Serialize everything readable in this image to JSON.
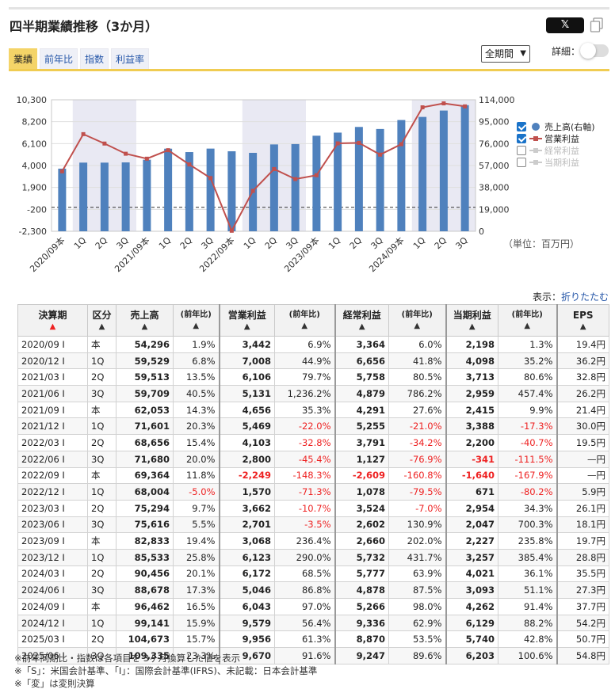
{
  "header": {
    "title": "四半期業績推移（3か月）",
    "share_x_label": "𝕏",
    "tabs": [
      "業績",
      "前年比",
      "指数",
      "利益率"
    ],
    "active_tab": 0,
    "period_select": "全期間",
    "detail_label": "詳細："
  },
  "chart_data": {
    "type": "bar+line",
    "categories": [
      "2020/09本",
      "1Q",
      "2Q",
      "3Q",
      "2021/09本",
      "1Q",
      "2Q",
      "3Q",
      "2022/09本",
      "1Q",
      "2Q",
      "3Q",
      "2023/09本",
      "1Q",
      "2Q",
      "3Q",
      "2024/09本",
      "1Q",
      "2Q",
      "3Q"
    ],
    "x_tick_labels": [
      "2020/09本",
      "1Q",
      "2Q",
      "3Q",
      "2021/09本",
      "1Q",
      "2Q",
      "3Q",
      "2022/09本",
      "1Q",
      "2Q",
      "3Q",
      "2023/09本",
      "1Q",
      "2Q",
      "3Q",
      "2024/09本",
      "1Q",
      "2Q",
      "3Q"
    ],
    "left_axis": {
      "ticks": [
        "10,300",
        "8,200",
        "6,100",
        "4,000",
        "1,900",
        "-200",
        "-2,300"
      ],
      "ylim": [
        -2300,
        10300
      ]
    },
    "right_axis": {
      "ticks": [
        "114,000",
        "95,000",
        "76,000",
        "57,000",
        "38,000",
        "19,000",
        "0"
      ],
      "ylim": [
        0,
        114000
      ]
    },
    "series": [
      {
        "name": "売上高(右軸)",
        "type": "bar",
        "axis": "right",
        "color": "#4f81bd",
        "values": [
          54296,
          59529,
          59513,
          59709,
          62053,
          71601,
          68656,
          71680,
          69364,
          68004,
          75294,
          75616,
          82833,
          85533,
          90456,
          88678,
          96462,
          99141,
          104673,
          109335
        ]
      },
      {
        "name": "営業利益",
        "type": "line",
        "axis": "left",
        "color": "#c0504d",
        "values": [
          3442,
          7008,
          6106,
          5131,
          4656,
          5469,
          4103,
          2800,
          -2249,
          1570,
          3662,
          2701,
          3068,
          6123,
          6172,
          5046,
          6043,
          9579,
          9956,
          9670
        ]
      }
    ],
    "shaded_groups": [
      [
        1,
        3
      ],
      [
        9,
        11
      ],
      [
        17,
        19
      ]
    ],
    "zero_line": 0
  },
  "legend": [
    {
      "label": "売上高(右軸)",
      "checked": true,
      "kind": "dot",
      "color": "#4f81bd"
    },
    {
      "label": "営業利益",
      "checked": true,
      "kind": "line",
      "color": "#c0504d"
    },
    {
      "label": "経常利益",
      "checked": false,
      "kind": "line",
      "color": "#c8c8c8"
    },
    {
      "label": "当期利益",
      "checked": false,
      "kind": "line",
      "color": "#c8c8c8"
    }
  ],
  "unit_label": "（単位：百万円）",
  "display": {
    "prefix": "表示：",
    "link": "折りたたむ"
  },
  "table": {
    "headers": [
      "決算期",
      "区分",
      "売上高",
      "(前年比)",
      "営業利益",
      "(前年比)",
      "経常利益",
      "(前年比)",
      "当期利益",
      "(前年比)",
      "EPS"
    ],
    "sort_arrows": [
      "▲",
      "▲",
      "▲",
      "▲",
      "▲",
      "▲",
      "▲",
      "▲",
      "▲",
      "▲",
      "▲"
    ],
    "rows": [
      [
        "2020/09 I",
        "本",
        "54,296",
        "1.9%",
        "3,442",
        "6.9%",
        "3,364",
        "6.0%",
        "2,198",
        "1.3%",
        "19.4円"
      ],
      [
        "2020/12 I",
        "1Q",
        "59,529",
        "6.8%",
        "7,008",
        "44.9%",
        "6,656",
        "41.8%",
        "4,098",
        "35.2%",
        "36.2円"
      ],
      [
        "2021/03 I",
        "2Q",
        "59,513",
        "13.5%",
        "6,106",
        "79.7%",
        "5,758",
        "80.5%",
        "3,713",
        "80.6%",
        "32.8円"
      ],
      [
        "2021/06 I",
        "3Q",
        "59,709",
        "40.5%",
        "5,131",
        "1,236.2%",
        "4,879",
        "786.2%",
        "2,959",
        "457.4%",
        "26.2円"
      ],
      [
        "2021/09 I",
        "本",
        "62,053",
        "14.3%",
        "4,656",
        "35.3%",
        "4,291",
        "27.6%",
        "2,415",
        "9.9%",
        "21.4円"
      ],
      [
        "2021/12 I",
        "1Q",
        "71,601",
        "20.3%",
        "5,469",
        "-22.0%",
        "5,255",
        "-21.0%",
        "3,388",
        "-17.3%",
        "30.0円"
      ],
      [
        "2022/03 I",
        "2Q",
        "68,656",
        "15.4%",
        "4,103",
        "-32.8%",
        "3,791",
        "-34.2%",
        "2,200",
        "-40.7%",
        "19.5円"
      ],
      [
        "2022/06 I",
        "3Q",
        "71,680",
        "20.0%",
        "2,800",
        "-45.4%",
        "1,127",
        "-76.9%",
        "-341",
        "-111.5%",
        "—円"
      ],
      [
        "2022/09 I",
        "本",
        "69,364",
        "11.8%",
        "-2,249",
        "-148.3%",
        "-2,609",
        "-160.8%",
        "-1,640",
        "-167.9%",
        "—円"
      ],
      [
        "2022/12 I",
        "1Q",
        "68,004",
        "-5.0%",
        "1,570",
        "-71.3%",
        "1,078",
        "-79.5%",
        "671",
        "-80.2%",
        "5.9円"
      ],
      [
        "2023/03 I",
        "2Q",
        "75,294",
        "9.7%",
        "3,662",
        "-10.7%",
        "3,524",
        "-7.0%",
        "2,954",
        "34.3%",
        "26.1円"
      ],
      [
        "2023/06 I",
        "3Q",
        "75,616",
        "5.5%",
        "2,701",
        "-3.5%",
        "2,602",
        "130.9%",
        "2,047",
        "700.3%",
        "18.1円"
      ],
      [
        "2023/09 I",
        "本",
        "82,833",
        "19.4%",
        "3,068",
        "236.4%",
        "2,660",
        "202.0%",
        "2,227",
        "235.8%",
        "19.7円"
      ],
      [
        "2023/12 I",
        "1Q",
        "85,533",
        "25.8%",
        "6,123",
        "290.0%",
        "5,732",
        "431.7%",
        "3,257",
        "385.4%",
        "28.8円"
      ],
      [
        "2024/03 I",
        "2Q",
        "90,456",
        "20.1%",
        "6,172",
        "68.5%",
        "5,777",
        "63.9%",
        "4,021",
        "36.1%",
        "35.5円"
      ],
      [
        "2024/06 I",
        "3Q",
        "88,678",
        "17.3%",
        "5,046",
        "86.8%",
        "4,878",
        "87.5%",
        "3,093",
        "51.1%",
        "27.3円"
      ],
      [
        "2024/09 I",
        "本",
        "96,462",
        "16.5%",
        "6,043",
        "97.0%",
        "5,266",
        "98.0%",
        "4,262",
        "91.4%",
        "37.7円"
      ],
      [
        "2024/12 I",
        "1Q",
        "99,141",
        "15.9%",
        "9,579",
        "56.4%",
        "9,336",
        "62.9%",
        "6,129",
        "88.2%",
        "54.2円"
      ],
      [
        "2025/03 I",
        "2Q",
        "104,673",
        "15.7%",
        "9,956",
        "61.3%",
        "8,870",
        "53.5%",
        "5,740",
        "42.8%",
        "50.7円"
      ],
      [
        "2025/06 I",
        "3Q",
        "109,335",
        "23.3%",
        "9,670",
        "91.6%",
        "9,247",
        "89.6%",
        "6,203",
        "100.6%",
        "54.8円"
      ]
    ]
  },
  "notes": [
    "※前年同期比・指数は各項目を 3ヶ月換算した値を表示",
    "※「S」：米国会計基準、「I」：国際会計基準(IFRS)、未記載：日本会計基準",
    "※「変」は変則決算"
  ]
}
